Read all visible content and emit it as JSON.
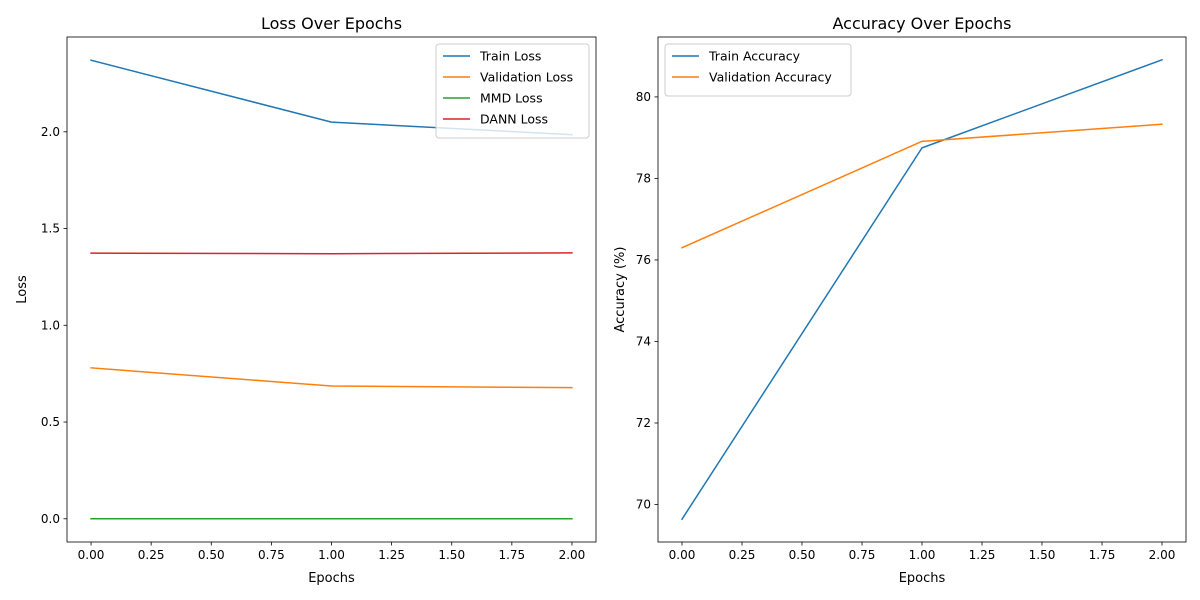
{
  "chart_data": [
    {
      "type": "line",
      "title": "Loss Over Epochs",
      "xlabel": "Epochs",
      "ylabel": "Loss",
      "xlim": [
        -0.1,
        2.1
      ],
      "ylim": [
        -0.12,
        2.49
      ],
      "xticks": [
        0.0,
        0.25,
        0.5,
        0.75,
        1.0,
        1.25,
        1.5,
        1.75,
        2.0
      ],
      "xtick_labels": [
        "0.00",
        "0.25",
        "0.50",
        "0.75",
        "1.00",
        "1.25",
        "1.50",
        "1.75",
        "2.00"
      ],
      "yticks": [
        0.0,
        0.5,
        1.0,
        1.5,
        2.0
      ],
      "ytick_labels": [
        "0.0",
        "0.5",
        "1.0",
        "1.5",
        "2.0"
      ],
      "legend_position": "top-right",
      "grid": false,
      "x": [
        0,
        1,
        2
      ],
      "series": [
        {
          "name": "Train Loss",
          "color": "#1f77b4",
          "values": [
            2.37,
            2.05,
            1.985
          ]
        },
        {
          "name": "Validation Loss",
          "color": "#ff7f0e",
          "values": [
            0.78,
            0.686,
            0.678
          ]
        },
        {
          "name": "MMD Loss",
          "color": "#2ca02c",
          "values": [
            0.0,
            0.0,
            0.0
          ]
        },
        {
          "name": "DANN Loss",
          "color": "#d62728",
          "values": [
            1.373,
            1.37,
            1.374
          ]
        }
      ]
    },
    {
      "type": "line",
      "title": "Accuracy Over Epochs",
      "xlabel": "Epochs",
      "ylabel": "Accuracy (%)",
      "xlim": [
        -0.1,
        2.1
      ],
      "ylim": [
        69.08,
        81.47
      ],
      "xticks": [
        0.0,
        0.25,
        0.5,
        0.75,
        1.0,
        1.25,
        1.5,
        1.75,
        2.0
      ],
      "xtick_labels": [
        "0.00",
        "0.25",
        "0.50",
        "0.75",
        "1.00",
        "1.25",
        "1.50",
        "1.75",
        "2.00"
      ],
      "yticks": [
        70,
        72,
        74,
        76,
        78,
        80
      ],
      "ytick_labels": [
        "70",
        "72",
        "74",
        "76",
        "78",
        "80"
      ],
      "legend_position": "top-left",
      "grid": false,
      "x": [
        0,
        1,
        2
      ],
      "series": [
        {
          "name": "Train Accuracy",
          "color": "#1f77b4",
          "values": [
            69.64,
            78.75,
            80.91
          ]
        },
        {
          "name": "Validation Accuracy",
          "color": "#ff7f0e",
          "values": [
            76.3,
            78.91,
            79.33
          ]
        }
      ]
    }
  ]
}
